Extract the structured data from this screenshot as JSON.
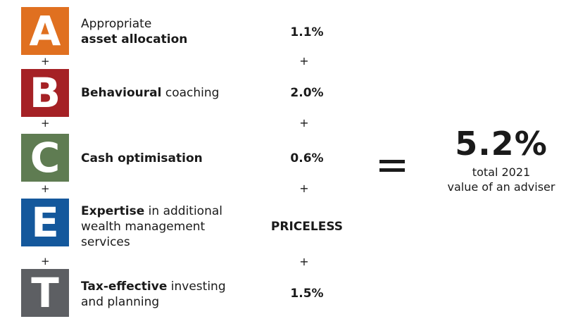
{
  "rows": [
    {
      "letter": "A",
      "color": "#e07020",
      "desc_bold": "asset allocation",
      "desc_pre": "Appropriate",
      "desc_post": "",
      "value": "1.1%"
    },
    {
      "letter": "B",
      "color": "#a52125",
      "desc_bold": "Behavioural",
      "desc_pre": "",
      "desc_post": " coaching",
      "value": "2.0%"
    },
    {
      "letter": "C",
      "color": "#5f7c52",
      "desc_bold": "Cash optimisation",
      "desc_pre": "",
      "desc_post": "",
      "value": "0.6%"
    },
    {
      "letter": "E",
      "color": "#14589c",
      "desc_bold": "Expertise",
      "desc_pre": "",
      "desc_post": " in additional wealth management services",
      "value": "PRICELESS"
    },
    {
      "letter": "T",
      "color": "#5d5f63",
      "desc_bold": "Tax-effective",
      "desc_pre": "",
      "desc_post": " investing and planning",
      "value": "1.5%"
    }
  ],
  "plus": "+",
  "total": {
    "value": "5.2%",
    "label_line1": "total 2021",
    "label_line2": "value of an adviser"
  }
}
